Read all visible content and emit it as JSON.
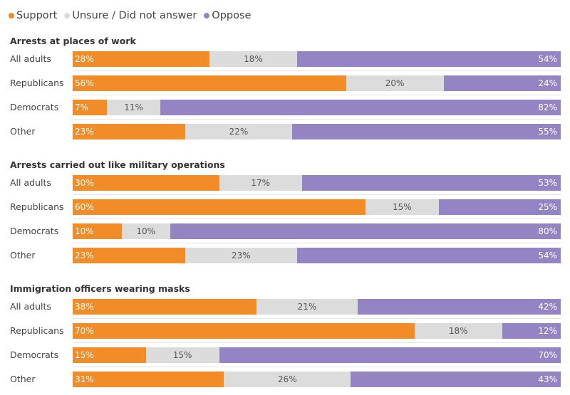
{
  "legend": [
    {
      "label": "Support",
      "color": "#f28c28"
    },
    {
      "label": "Unsure / Did not answer",
      "color": "#dcdcdc"
    },
    {
      "label": "Oppose",
      "color": "#9484c4"
    }
  ],
  "chart_data": {
    "type": "bar",
    "orientation": "horizontal",
    "stacked": true,
    "categories": [
      "All adults",
      "Republicans",
      "Democrats",
      "Other"
    ],
    "series_names": [
      "Support",
      "Unsure / Did not answer",
      "Oppose"
    ],
    "groups": [
      {
        "title": "Arrests at places of work",
        "rows": [
          {
            "label": "All adults",
            "values": [
              28,
              18,
              54
            ]
          },
          {
            "label": "Republicans",
            "values": [
              56,
              20,
              24
            ]
          },
          {
            "label": "Democrats",
            "values": [
              7,
              11,
              82
            ]
          },
          {
            "label": "Other",
            "values": [
              23,
              22,
              55
            ]
          }
        ]
      },
      {
        "title": "Arrests carried out like military operations",
        "rows": [
          {
            "label": "All adults",
            "values": [
              30,
              17,
              53
            ]
          },
          {
            "label": "Republicans",
            "values": [
              60,
              15,
              25
            ]
          },
          {
            "label": "Democrats",
            "values": [
              10,
              10,
              80
            ]
          },
          {
            "label": "Other",
            "values": [
              23,
              23,
              54
            ]
          }
        ]
      },
      {
        "title": "Immigration officers wearing masks",
        "rows": [
          {
            "label": "All adults",
            "values": [
              38,
              21,
              42
            ]
          },
          {
            "label": "Republicans",
            "values": [
              70,
              18,
              12
            ]
          },
          {
            "label": "Democrats",
            "values": [
              15,
              15,
              70
            ]
          },
          {
            "label": "Other",
            "values": [
              31,
              26,
              43
            ]
          }
        ]
      }
    ],
    "value_suffix": "%"
  }
}
